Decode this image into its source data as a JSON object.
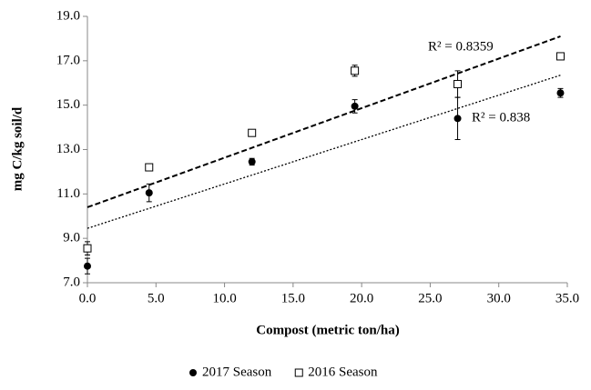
{
  "chart_data": {
    "type": "scatter",
    "x_label": "Compost (metric ton/ha)",
    "y_label": "mg C/kg soil/d",
    "xlim": [
      0,
      35
    ],
    "ylim": [
      7,
      19
    ],
    "xticks": [
      {
        "value": 0,
        "label": "0.0"
      },
      {
        "value": 5,
        "label": "5.0"
      },
      {
        "value": 10,
        "label": "10.0"
      },
      {
        "value": 15,
        "label": "15.0"
      },
      {
        "value": 20,
        "label": "20.0"
      },
      {
        "value": 25,
        "label": "25.0"
      },
      {
        "value": 30,
        "label": "30.0"
      },
      {
        "value": 35,
        "label": "35.0"
      }
    ],
    "yticks": [
      {
        "value": 7,
        "label": "7.0"
      },
      {
        "value": 9,
        "label": "9.0"
      },
      {
        "value": 11,
        "label": "11.0"
      },
      {
        "value": 13,
        "label": "13.0"
      },
      {
        "value": 15,
        "label": "15.0"
      },
      {
        "value": 17,
        "label": "17.0"
      },
      {
        "value": 19,
        "label": "19.0"
      }
    ],
    "legend": "bottom",
    "series": [
      {
        "name": "2017 Season",
        "marker": "circle",
        "color": "#000000",
        "x": [
          0,
          4.5,
          12,
          19.5,
          27,
          34.5
        ],
        "values": [
          7.75,
          11.05,
          12.45,
          14.95,
          14.4,
          15.55
        ],
        "errors": [
          0.35,
          0.4,
          0.15,
          0.3,
          0.95,
          0.2
        ],
        "trendline": {
          "style": "dotted",
          "intercept": 9.45,
          "slope": 0.2,
          "label": "R² = 0.838"
        }
      },
      {
        "name": "2016 Season",
        "marker": "square",
        "color": "#000000",
        "x": [
          0,
          4.5,
          12,
          19.5,
          27,
          34.5
        ],
        "values": [
          8.55,
          12.2,
          13.75,
          16.55,
          15.95,
          17.2
        ],
        "errors": [
          0.3,
          0.1,
          0.1,
          0.25,
          0.6,
          0.15
        ],
        "trendline": {
          "style": "dashed",
          "intercept": 10.4,
          "slope": 0.2232,
          "label": "R² = 0.8359"
        }
      }
    ]
  }
}
